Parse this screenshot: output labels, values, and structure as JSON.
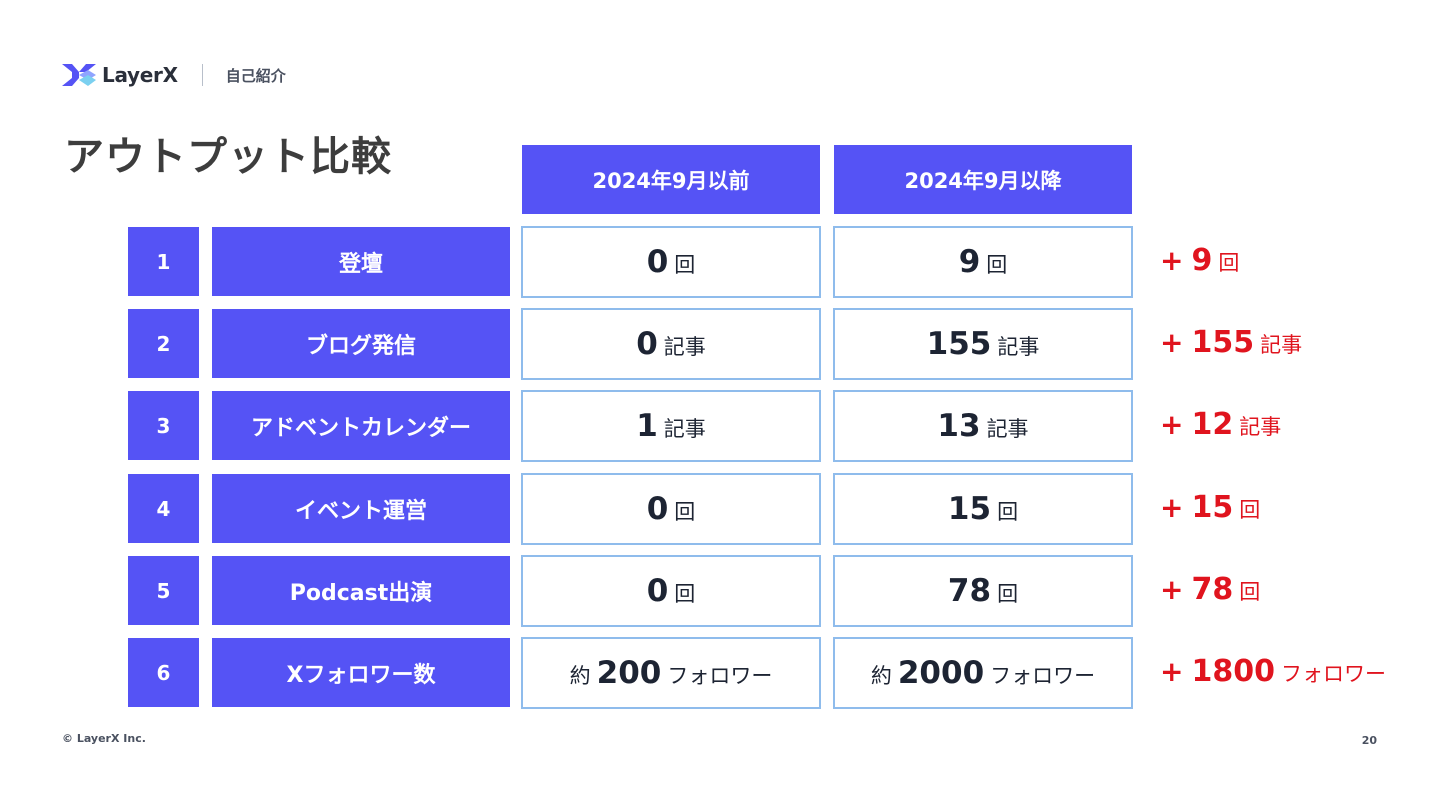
{
  "header": {
    "brand": "LayerX",
    "section": "自己紹介"
  },
  "title": "アウトプット比較",
  "columns": {
    "before": "2024年9月以前",
    "after": "2024年9月以降"
  },
  "rows": [
    {
      "no": "1",
      "label": "登壇",
      "before": {
        "prefix": "",
        "value": "0",
        "unit": "回"
      },
      "after": {
        "prefix": "",
        "value": "9",
        "unit": "回"
      },
      "diff": {
        "sign": "+",
        "value": "9",
        "unit": "回"
      }
    },
    {
      "no": "2",
      "label": "ブログ発信",
      "before": {
        "prefix": "",
        "value": "0",
        "unit": "記事"
      },
      "after": {
        "prefix": "",
        "value": "155",
        "unit": "記事"
      },
      "diff": {
        "sign": "+",
        "value": "155",
        "unit": "記事"
      }
    },
    {
      "no": "3",
      "label": "アドベントカレンダー",
      "before": {
        "prefix": "",
        "value": "1",
        "unit": "記事"
      },
      "after": {
        "prefix": "",
        "value": "13",
        "unit": "記事"
      },
      "diff": {
        "sign": "+",
        "value": "12",
        "unit": "記事"
      }
    },
    {
      "no": "4",
      "label": "イベント運営",
      "before": {
        "prefix": "",
        "value": "0",
        "unit": "回"
      },
      "after": {
        "prefix": "",
        "value": "15",
        "unit": "回"
      },
      "diff": {
        "sign": "+",
        "value": "15",
        "unit": "回"
      }
    },
    {
      "no": "5",
      "label": "Podcast出演",
      "before": {
        "prefix": "",
        "value": "0",
        "unit": "回"
      },
      "after": {
        "prefix": "",
        "value": "78",
        "unit": "回"
      },
      "diff": {
        "sign": "+",
        "value": "78",
        "unit": "回"
      }
    },
    {
      "no": "6",
      "label": "Xフォロワー数",
      "before": {
        "prefix": "約",
        "value": "200",
        "unit": "フォロワー"
      },
      "after": {
        "prefix": "約",
        "value": "2000",
        "unit": "フォロワー"
      },
      "diff": {
        "sign": "+",
        "value": "1800",
        "unit": "フォロワー"
      }
    }
  ],
  "footer": {
    "copyright": "© LayerX Inc.",
    "page": "20"
  },
  "colors": {
    "accent": "#5553f5",
    "cell_border": "#8fbcec",
    "diff": "#e0141e"
  }
}
